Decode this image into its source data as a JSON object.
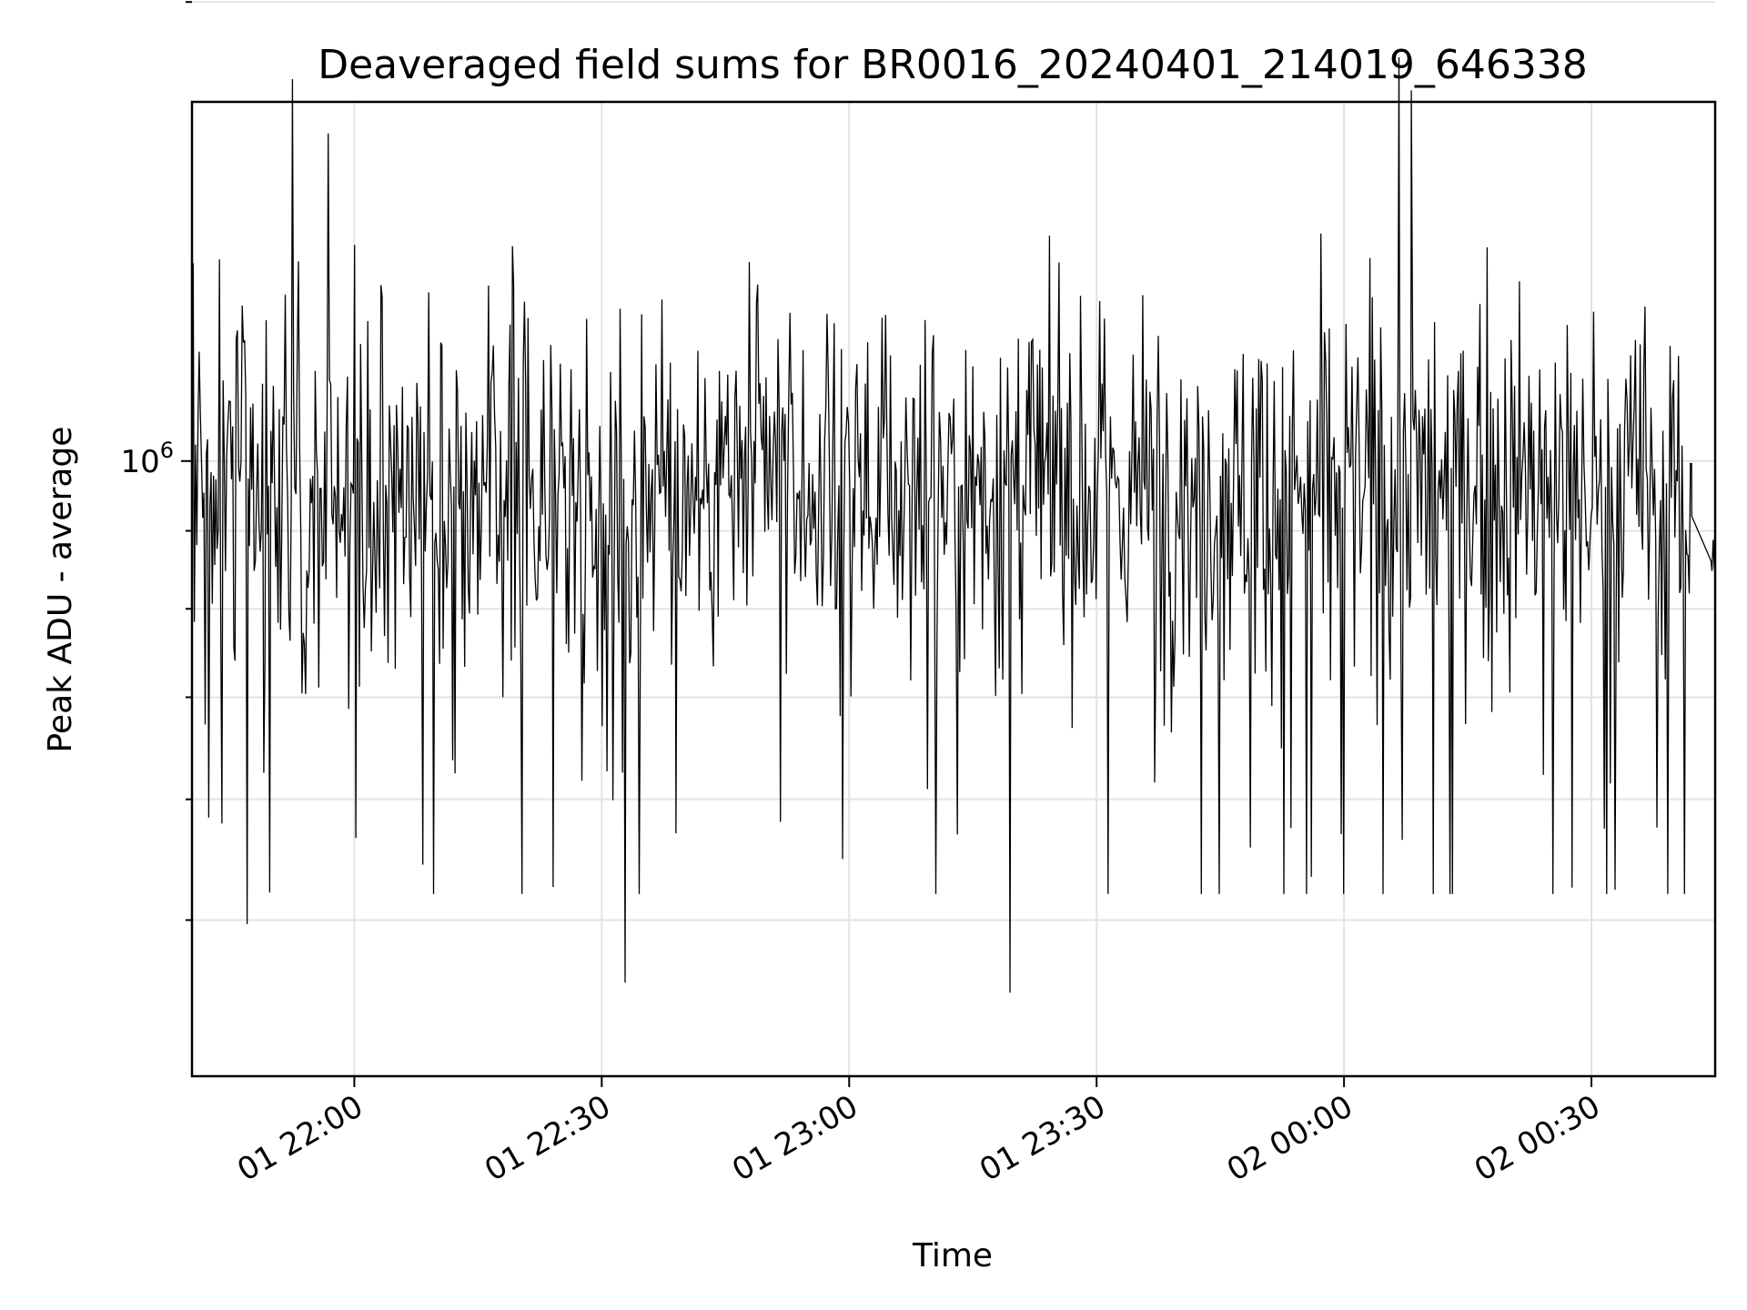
{
  "chart_data": {
    "type": "line",
    "title": "Deaveraged field sums for BR0016_20240401_214019_646338",
    "xlabel": "Time",
    "ylabel": "Peak ADU - average",
    "y_scale": "log",
    "grid": true,
    "legend": "none",
    "x_range": [
      "2024-04-01 21:40:19",
      "2024-04-02 00:45:00"
    ],
    "ylim": [
      395000,
      1720000
    ],
    "x_ticks": [
      {
        "time": "2024-04-01 22:00",
        "label": "01 22:00"
      },
      {
        "time": "2024-04-01 22:30",
        "label": "01 22:30"
      },
      {
        "time": "2024-04-01 23:00",
        "label": "01 23:00"
      },
      {
        "time": "2024-04-01 23:30",
        "label": "01 23:30"
      },
      {
        "time": "2024-04-02 00:00",
        "label": "02 00:00"
      },
      {
        "time": "2024-04-02 00:30",
        "label": "02 00:30"
      }
    ],
    "y_major_ticks": [
      {
        "value": 1000000,
        "label_base": "10",
        "label_exp": "6"
      }
    ],
    "y_minor_ticks": [
      500000,
      600000,
      700000,
      800000,
      900000,
      2000000
    ],
    "series": [
      {
        "color": "#000000",
        "x_start": "2024-04-01 21:40:19",
        "x_end": "2024-04-02 00:45:00",
        "sample_interval_seconds": 8.7,
        "gap": {
          "from": "2024-04-02 00:42:10",
          "to": "2024-04-02 00:44:30",
          "y_from": 920000,
          "y_to": 860000
        },
        "median": 960000,
        "notable_points": [
          {
            "time": "2024-04-01 21:47:00",
            "value": 497000
          },
          {
            "time": "2024-04-01 21:52:30",
            "value": 1780000
          },
          {
            "time": "2024-04-01 21:56:50",
            "value": 1640000
          },
          {
            "time": "2024-04-01 22:32:50",
            "value": 455000
          },
          {
            "time": "2024-04-01 22:39:00",
            "value": 570000
          },
          {
            "time": "2024-04-01 22:51:40",
            "value": 580000
          },
          {
            "time": "2024-04-01 23:19:30",
            "value": 448000
          },
          {
            "time": "2024-04-02 00:06:40",
            "value": 1840000
          },
          {
            "time": "2024-04-02 00:08:10",
            "value": 1750000
          }
        ]
      }
    ]
  }
}
